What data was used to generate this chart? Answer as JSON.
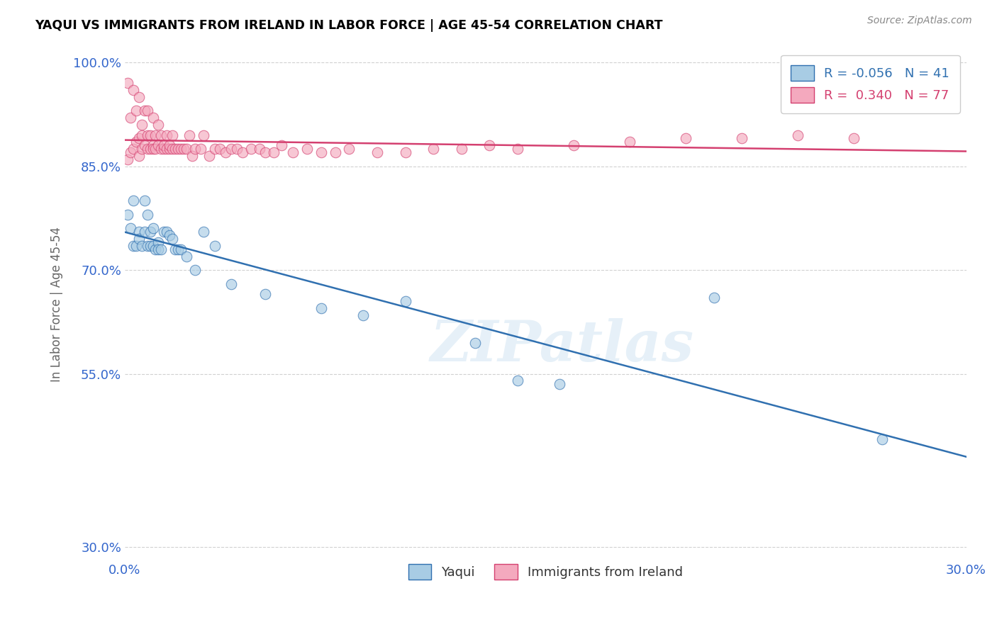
{
  "title": "YAQUI VS IMMIGRANTS FROM IRELAND IN LABOR FORCE | AGE 45-54 CORRELATION CHART",
  "source": "Source: ZipAtlas.com",
  "ylabel": "In Labor Force | Age 45-54",
  "xmin": 0.0,
  "xmax": 0.3,
  "ymin": 0.28,
  "ymax": 1.02,
  "yticks": [
    1.0,
    0.85,
    0.7,
    0.55,
    0.3
  ],
  "ytick_labels": [
    "100.0%",
    "85.0%",
    "70.0%",
    "55.0%",
    "30.0%"
  ],
  "xticks": [
    0.0,
    0.3
  ],
  "xtick_labels": [
    "0.0%",
    "30.0%"
  ],
  "legend_labels": [
    "Yaqui",
    "Immigrants from Ireland"
  ],
  "R_blue": -0.056,
  "N_blue": 41,
  "R_pink": 0.34,
  "N_pink": 77,
  "blue_color": "#a8cce4",
  "pink_color": "#f4a9be",
  "blue_line_color": "#3070b0",
  "pink_line_color": "#d44070",
  "watermark_text": "ZIPatlas",
  "blue_scatter_x": [
    0.001,
    0.002,
    0.003,
    0.003,
    0.004,
    0.005,
    0.005,
    0.006,
    0.007,
    0.007,
    0.008,
    0.008,
    0.009,
    0.009,
    0.01,
    0.01,
    0.011,
    0.012,
    0.012,
    0.013,
    0.014,
    0.015,
    0.016,
    0.017,
    0.018,
    0.019,
    0.02,
    0.022,
    0.025,
    0.028,
    0.032,
    0.038,
    0.05,
    0.07,
    0.085,
    0.1,
    0.125,
    0.14,
    0.155,
    0.21,
    0.27
  ],
  "blue_scatter_y": [
    0.78,
    0.76,
    0.735,
    0.8,
    0.735,
    0.755,
    0.745,
    0.735,
    0.755,
    0.8,
    0.735,
    0.78,
    0.755,
    0.735,
    0.76,
    0.735,
    0.73,
    0.74,
    0.73,
    0.73,
    0.755,
    0.755,
    0.75,
    0.745,
    0.73,
    0.73,
    0.73,
    0.72,
    0.7,
    0.755,
    0.735,
    0.68,
    0.665,
    0.645,
    0.635,
    0.655,
    0.595,
    0.54,
    0.535,
    0.66,
    0.455
  ],
  "pink_scatter_x": [
    0.001,
    0.001,
    0.002,
    0.002,
    0.003,
    0.003,
    0.004,
    0.004,
    0.005,
    0.005,
    0.005,
    0.006,
    0.006,
    0.006,
    0.007,
    0.007,
    0.008,
    0.008,
    0.008,
    0.009,
    0.009,
    0.01,
    0.01,
    0.01,
    0.011,
    0.011,
    0.012,
    0.012,
    0.013,
    0.013,
    0.014,
    0.014,
    0.015,
    0.015,
    0.016,
    0.016,
    0.017,
    0.017,
    0.018,
    0.019,
    0.02,
    0.021,
    0.022,
    0.023,
    0.024,
    0.025,
    0.027,
    0.028,
    0.03,
    0.032,
    0.034,
    0.036,
    0.038,
    0.04,
    0.042,
    0.045,
    0.048,
    0.05,
    0.053,
    0.056,
    0.06,
    0.065,
    0.07,
    0.075,
    0.08,
    0.09,
    0.1,
    0.11,
    0.12,
    0.13,
    0.14,
    0.16,
    0.18,
    0.2,
    0.22,
    0.24,
    0.26
  ],
  "pink_scatter_y": [
    0.86,
    0.97,
    0.92,
    0.87,
    0.875,
    0.96,
    0.885,
    0.93,
    0.89,
    0.95,
    0.865,
    0.895,
    0.91,
    0.875,
    0.93,
    0.88,
    0.895,
    0.93,
    0.875,
    0.875,
    0.895,
    0.88,
    0.92,
    0.875,
    0.895,
    0.875,
    0.88,
    0.91,
    0.875,
    0.895,
    0.875,
    0.88,
    0.875,
    0.895,
    0.875,
    0.88,
    0.875,
    0.895,
    0.875,
    0.875,
    0.875,
    0.875,
    0.875,
    0.895,
    0.865,
    0.875,
    0.875,
    0.895,
    0.865,
    0.875,
    0.875,
    0.87,
    0.875,
    0.875,
    0.87,
    0.875,
    0.875,
    0.87,
    0.87,
    0.88,
    0.87,
    0.875,
    0.87,
    0.87,
    0.875,
    0.87,
    0.87,
    0.875,
    0.875,
    0.88,
    0.875,
    0.88,
    0.885,
    0.89,
    0.89,
    0.895,
    0.89
  ]
}
